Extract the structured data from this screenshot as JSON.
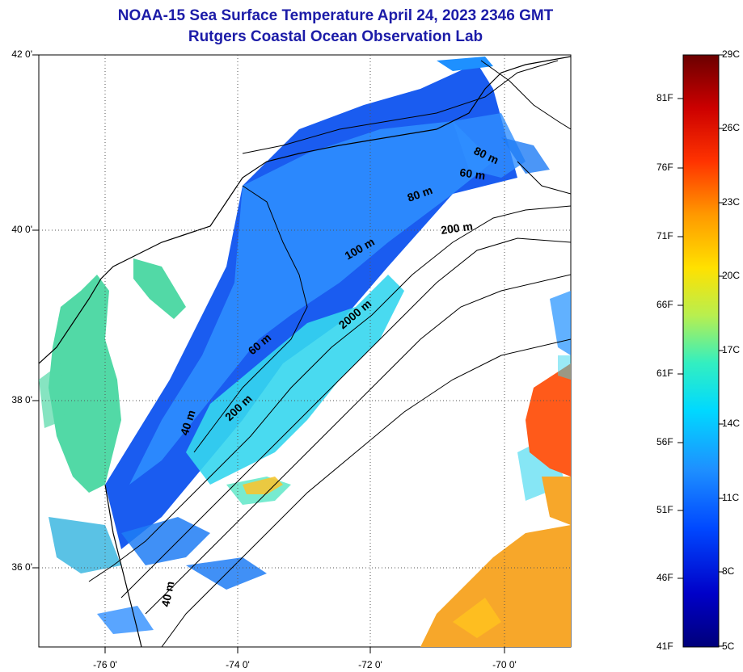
{
  "title": "NOAA-15 Sea Surface Temperature April 24, 2023 2346 GMT",
  "subtitle": "Rutgers Coastal Ocean Observation Lab",
  "lat_labels": [
    "42 0'",
    "40 0'",
    "38 0'",
    "36 0'"
  ],
  "lon_labels": [
    "-76 0'",
    "-74 0'",
    "-72 0'",
    "-70 0'"
  ],
  "depth_labels": [
    "40 m",
    "40 m",
    "60 m",
    "200 m",
    "2000 m",
    "100 m",
    "80 m",
    "200 m",
    "60 m",
    "80 m"
  ],
  "colorbar": {
    "fahrenheit": [
      "81F",
      "76F",
      "71F",
      "66F",
      "61F",
      "56F",
      "51F",
      "46F",
      "41F"
    ],
    "celsius": [
      "29C",
      "26C",
      "23C",
      "20C",
      "17C",
      "14C",
      "11C",
      "8C",
      "5C"
    ],
    "colors": [
      "#6b0000",
      "#cc0000",
      "#ff3300",
      "#ff9900",
      "#ffe100",
      "#b8ef4f",
      "#33efc0",
      "#00d9ff",
      "#1e90ff",
      "#0048ff",
      "#0000c8",
      "#00007a"
    ]
  },
  "map_colors": {
    "land": "#ffffff",
    "cold_shelf": "#1a5cf0",
    "slope": "#2f8fff",
    "gulf_stream_edge": "#35d6ee",
    "bay": "#52d9a6",
    "warm_eddy": "#ff5a1a",
    "warm_sargasso": "#f7a72a",
    "contour": "#000000",
    "grid": "#555555"
  }
}
